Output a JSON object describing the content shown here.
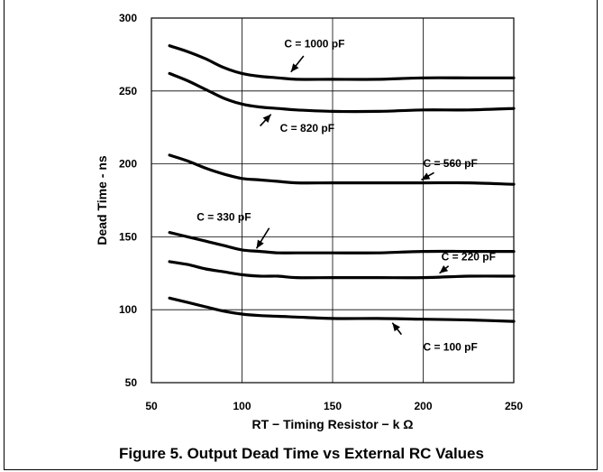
{
  "caption": "Figure 5. Output Dead Time vs External RC Values",
  "chart_data": {
    "type": "line",
    "title": "",
    "xlabel": "RT − Timing Resistor − k Ω",
    "ylabel": "Dead Time - ns",
    "xlim": [
      50,
      250
    ],
    "ylim": [
      50,
      300
    ],
    "xticks": [
      50,
      100,
      150,
      200,
      250
    ],
    "yticks": [
      50,
      100,
      150,
      200,
      250,
      300
    ],
    "grid": true,
    "line_color": "#000000",
    "series": [
      {
        "name": "C = 1000 pF",
        "x": [
          60,
          70,
          80,
          90,
          100,
          110,
          120,
          130,
          150,
          175,
          200,
          225,
          250
        ],
        "y": [
          281,
          277,
          272,
          266,
          262,
          260,
          259,
          258,
          258,
          258,
          259,
          259,
          259
        ]
      },
      {
        "name": "C = 820 pF",
        "x": [
          60,
          70,
          80,
          90,
          100,
          110,
          120,
          130,
          150,
          175,
          200,
          225,
          250
        ],
        "y": [
          262,
          257,
          251,
          245,
          241,
          239,
          238,
          237,
          236,
          236,
          237,
          237,
          238
        ]
      },
      {
        "name": "C = 560 pF",
        "x": [
          60,
          70,
          80,
          90,
          100,
          110,
          120,
          130,
          150,
          175,
          200,
          225,
          250
        ],
        "y": [
          206,
          202,
          197,
          193,
          190,
          189,
          188,
          187,
          187,
          187,
          187,
          187,
          186
        ]
      },
      {
        "name": "C = 330 pF",
        "x": [
          60,
          70,
          80,
          90,
          100,
          110,
          120,
          130,
          150,
          175,
          200,
          225,
          250
        ],
        "y": [
          153,
          150,
          147,
          144,
          141,
          140,
          139,
          139,
          139,
          139,
          140,
          140,
          140
        ]
      },
      {
        "name": "C = 220 pF",
        "x": [
          60,
          70,
          80,
          90,
          100,
          110,
          120,
          130,
          150,
          175,
          200,
          225,
          250
        ],
        "y": [
          133,
          131,
          128,
          126,
          124,
          123,
          123,
          122,
          122,
          122,
          122,
          123,
          123
        ]
      },
      {
        "name": "C = 100 pF",
        "x": [
          60,
          70,
          80,
          90,
          100,
          110,
          120,
          130,
          150,
          175,
          200,
          225,
          250
        ],
        "y": [
          108,
          105,
          102,
          99,
          97,
          96,
          95.5,
          95,
          94,
          94,
          93.5,
          93,
          92
        ]
      }
    ],
    "annotations": [
      {
        "text": "C = 1000 pF",
        "x": 140,
        "y": 280,
        "arrow_from": [
          134,
          274
        ],
        "arrow_to": [
          127,
          263
        ]
      },
      {
        "text": "C = 820 pF",
        "x": 136,
        "y": 222,
        "arrow_from": [
          110,
          226
        ],
        "arrow_to": [
          116,
          234
        ]
      },
      {
        "text": "C = 560 pF",
        "x": 215,
        "y": 198,
        "arrow_from": [
          206,
          194
        ],
        "arrow_to": [
          199,
          189
        ]
      },
      {
        "text": "C = 330 pF",
        "x": 90,
        "y": 161,
        "arrow_from": [
          115,
          156
        ],
        "arrow_to": [
          108,
          142
        ]
      },
      {
        "text": "C = 220 pF",
        "x": 225,
        "y": 134,
        "arrow_from": [
          214,
          130
        ],
        "arrow_to": [
          209,
          125
        ]
      },
      {
        "text": "C = 100 pF",
        "x": 215,
        "y": 72,
        "arrow_from": [
          188,
          83
        ],
        "arrow_to": [
          183,
          91
        ]
      }
    ]
  }
}
